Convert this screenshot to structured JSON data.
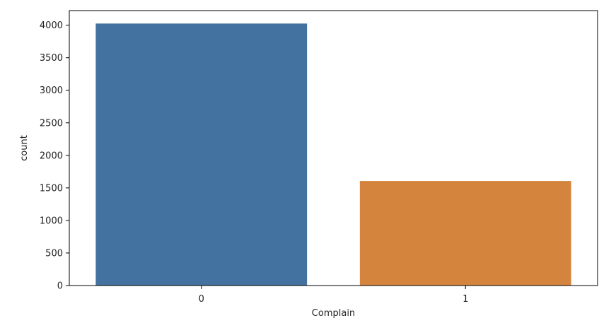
{
  "chart_data": {
    "type": "bar",
    "categories": [
      "0",
      "1"
    ],
    "values": [
      4025,
      1606
    ],
    "colors": [
      "#4472a0",
      "#d5843e"
    ],
    "xlabel": "Complain",
    "ylabel": "count",
    "ylim": [
      0,
      4224
    ],
    "yticks": [
      0,
      500,
      1000,
      1500,
      2000,
      2500,
      3000,
      3500,
      4000
    ],
    "grid": false,
    "legend": "none"
  }
}
